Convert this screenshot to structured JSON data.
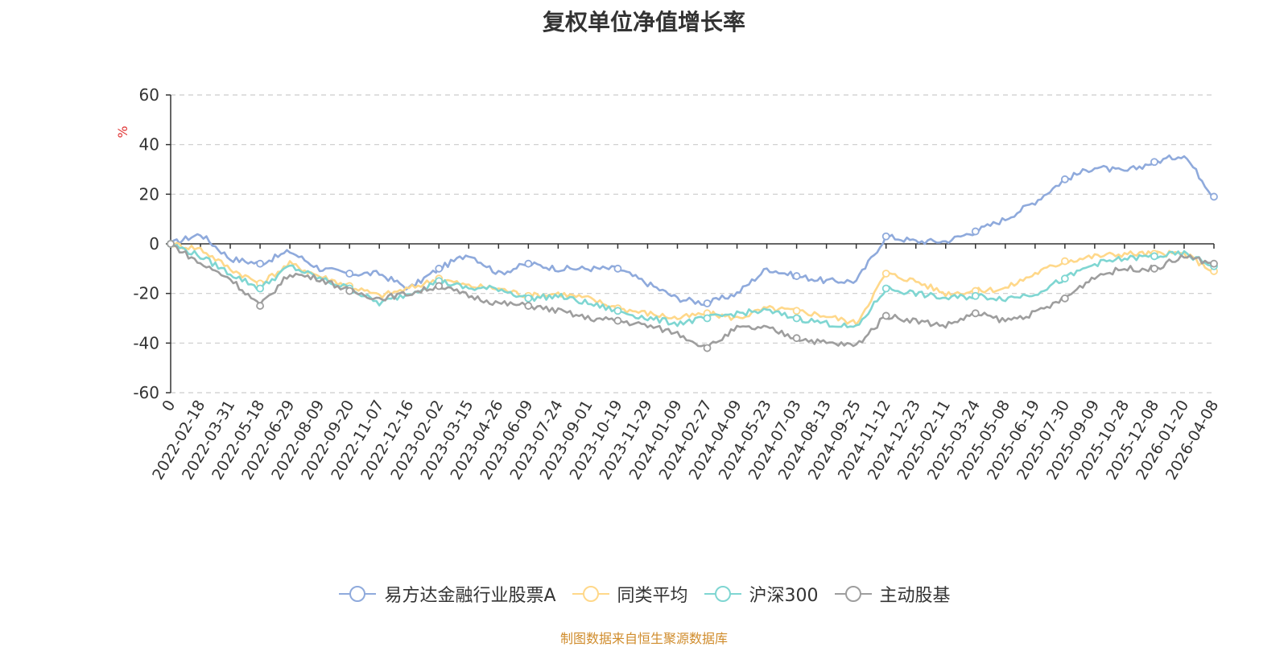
{
  "chart_data": {
    "type": "line",
    "title": "复权单位净值增长率",
    "ylabel": "%",
    "xlabel": "",
    "ylim": [
      -60,
      60
    ],
    "yticks": [
      -60,
      -40,
      -20,
      0,
      20,
      40,
      60
    ],
    "grid": true,
    "legend_position": "bottom",
    "x_tick_labels": [
      "0",
      "2022-02-18",
      "2022-03-31",
      "2022-05-18",
      "2022-06-29",
      "2022-08-09",
      "2022-09-20",
      "2022-11-07",
      "2022-12-16",
      "2023-02-02",
      "2023-03-15",
      "2023-04-26",
      "2023-06-09",
      "2023-07-24",
      "2023-09-01",
      "2023-10-19",
      "2023-11-29",
      "2024-01-09",
      "2024-02-27",
      "2024-04-09",
      "2024-05-23",
      "2024-07-03",
      "2024-08-13",
      "2024-09-25",
      "2024-11-12",
      "2024-12-23",
      "2025-02-11",
      "2025-03-24",
      "2025-05-08",
      "2025-06-19",
      "2025-07-30",
      "2025-09-09",
      "2025-10-28",
      "2025-12-08",
      "2026-01-20",
      "2026-04-08"
    ],
    "series": [
      {
        "name": "易方达金融行业股票A",
        "color": "#8faadc",
        "values": [
          0,
          4,
          -6,
          -8,
          -3,
          -10,
          -12,
          -12,
          -18,
          -10,
          -4,
          -12,
          -8,
          -10,
          -10,
          -10,
          -16,
          -22,
          -24,
          -20,
          -10,
          -13,
          -15,
          -15,
          3,
          1,
          1,
          5,
          10,
          17,
          26,
          31,
          29,
          33,
          36,
          19
        ]
      },
      {
        "name": "同类平均",
        "color": "#ffd88a",
        "values": [
          0,
          -2,
          -10,
          -16,
          -8,
          -13,
          -17,
          -21,
          -18,
          -14,
          -17,
          -18,
          -21,
          -20,
          -22,
          -26,
          -28,
          -30,
          -28,
          -30,
          -26,
          -27,
          -29,
          -32,
          -12,
          -15,
          -20,
          -19,
          -18,
          -12,
          -7,
          -5,
          -4,
          -4,
          -4,
          -11
        ]
      },
      {
        "name": "沪深300",
        "color": "#7fd6d2",
        "values": [
          0,
          -5,
          -12,
          -18,
          -9,
          -14,
          -18,
          -24,
          -20,
          -15,
          -18,
          -18,
          -22,
          -21,
          -24,
          -27,
          -30,
          -32,
          -30,
          -28,
          -27,
          -30,
          -32,
          -34,
          -18,
          -20,
          -22,
          -21,
          -22,
          -20,
          -14,
          -8,
          -6,
          -5,
          -4,
          -9
        ]
      },
      {
        "name": "主动股基",
        "color": "#9e9e9e",
        "values": [
          0,
          -8,
          -14,
          -25,
          -12,
          -14,
          -19,
          -22,
          -20,
          -17,
          -21,
          -24,
          -25,
          -27,
          -30,
          -31,
          -33,
          -36,
          -42,
          -34,
          -34,
          -38,
          -40,
          -41,
          -29,
          -31,
          -33,
          -28,
          -31,
          -28,
          -22,
          -13,
          -10,
          -10,
          -5,
          -8
        ]
      }
    ]
  },
  "source_note": "制图数据来自恒生聚源数据库"
}
